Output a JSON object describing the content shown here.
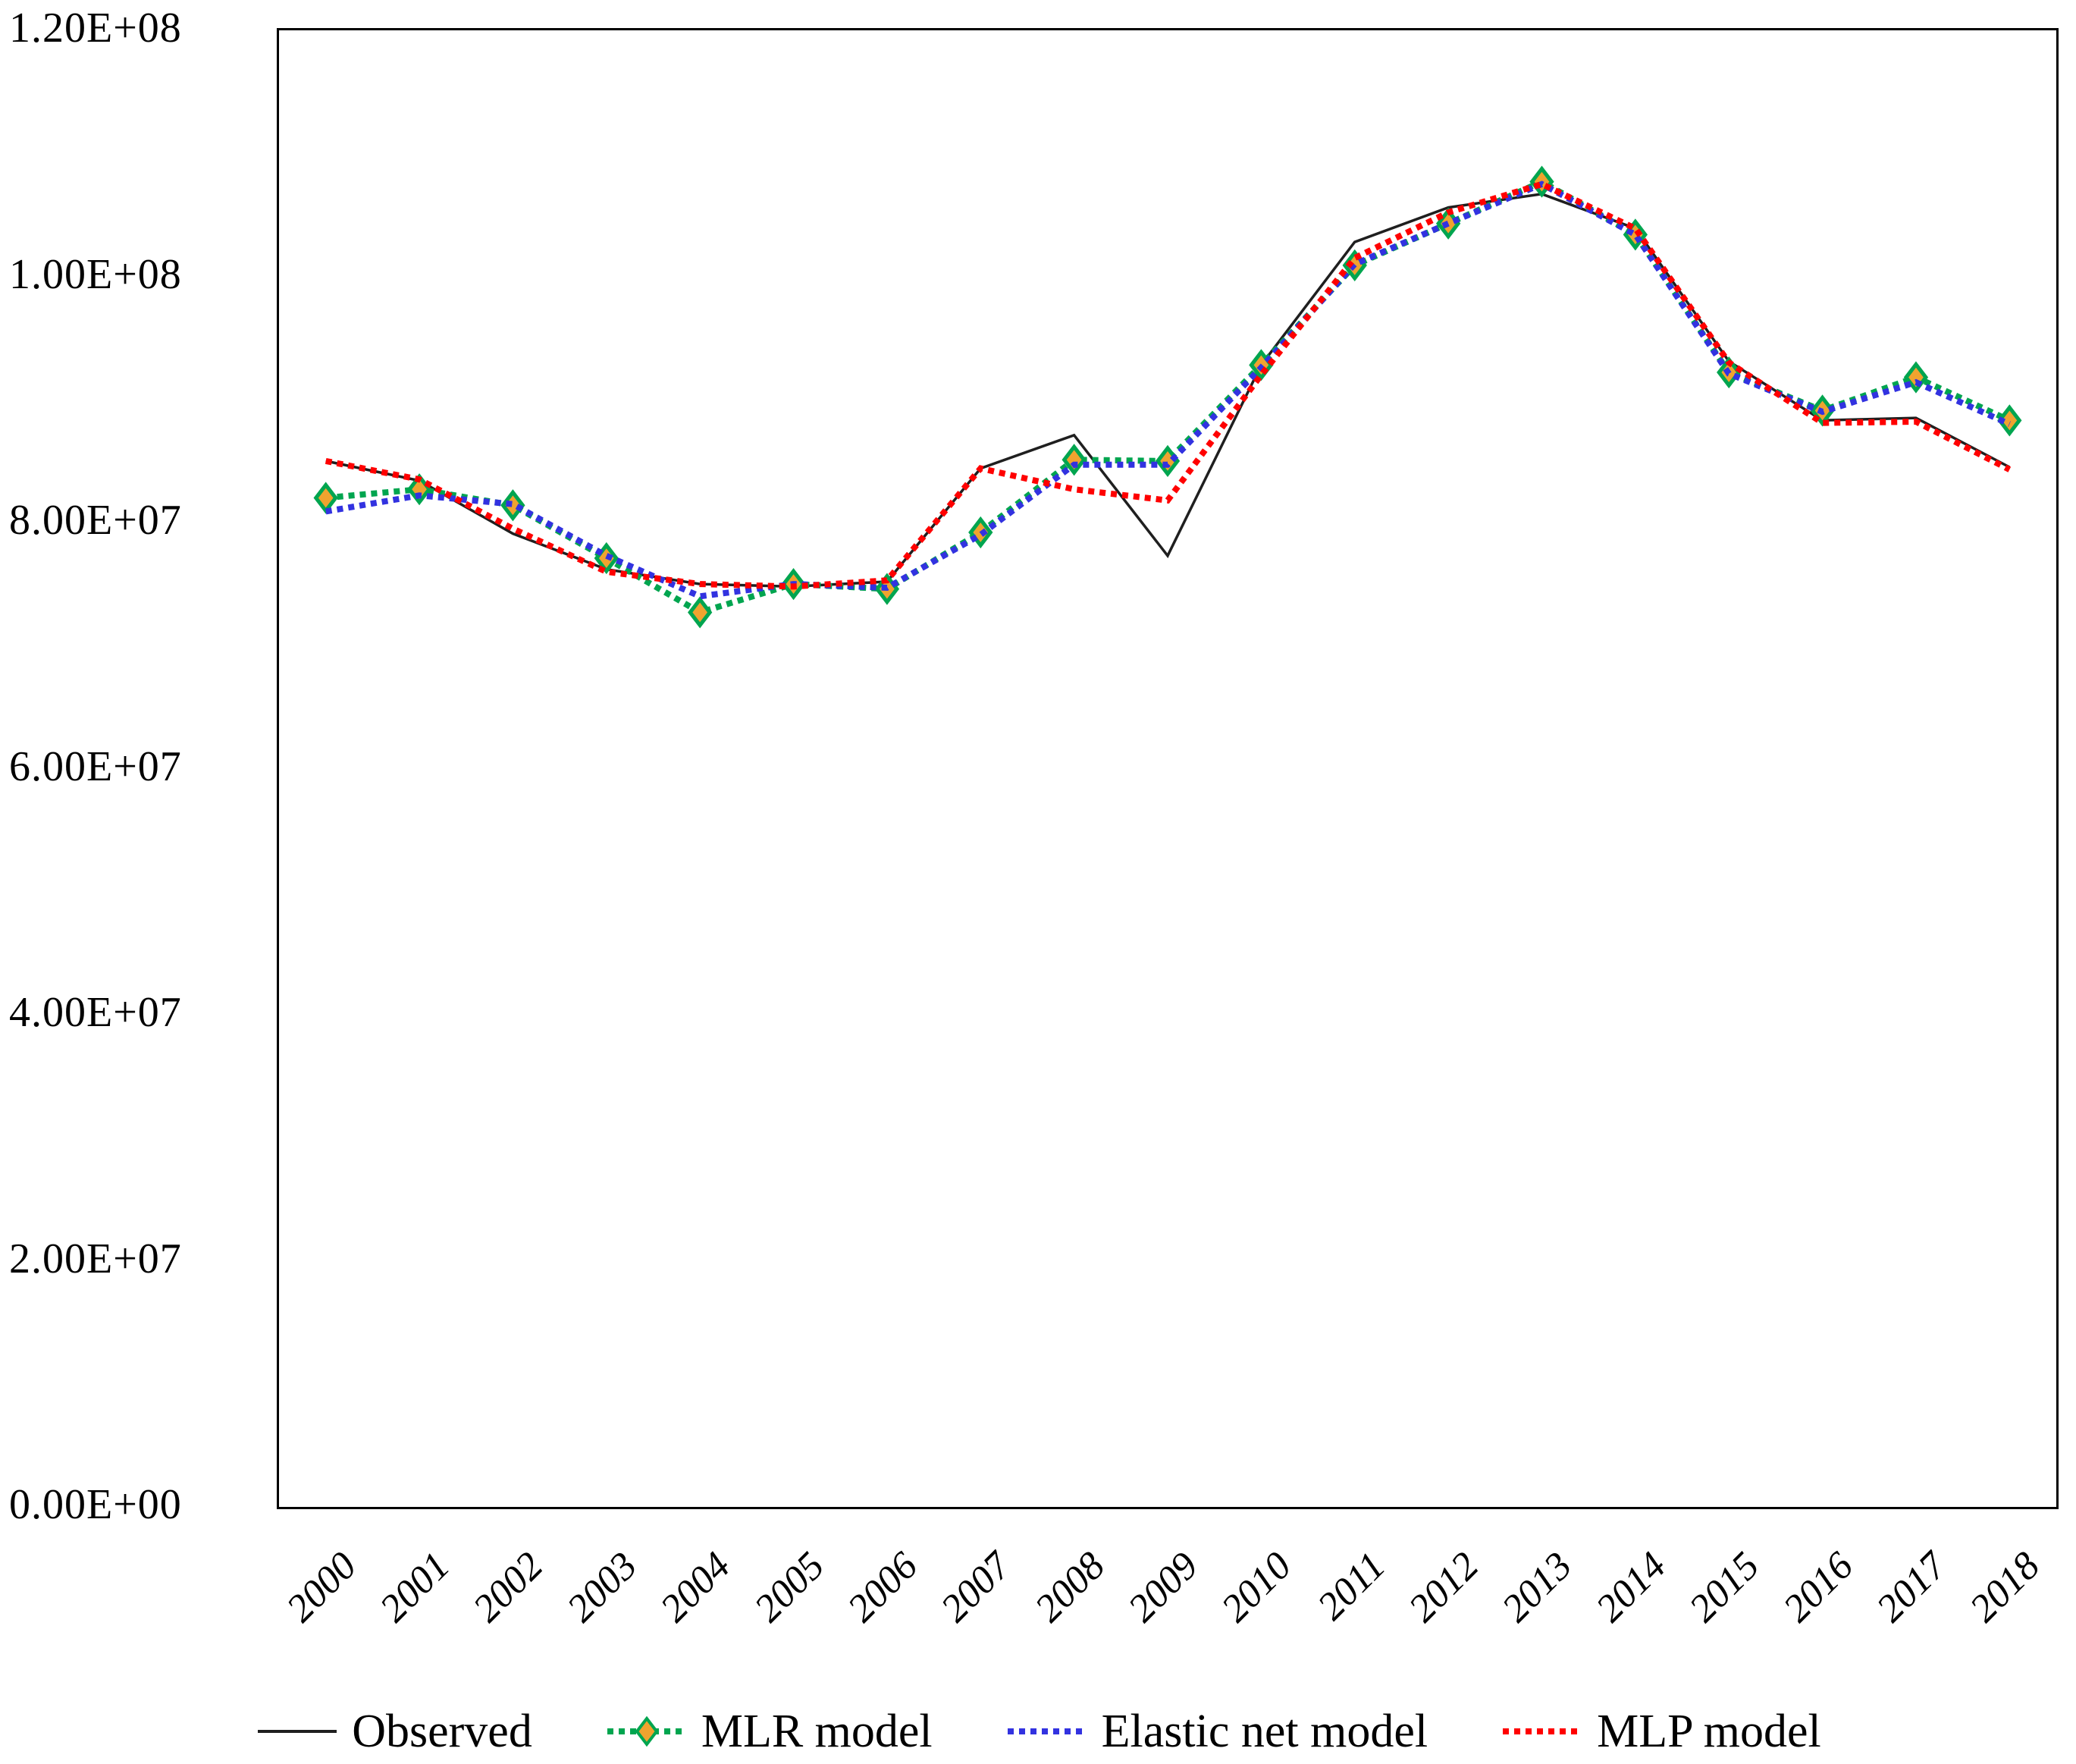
{
  "figure": {
    "background": "#ffffff",
    "frame_color": "#000000"
  },
  "y_axis": {
    "tick_labels": [
      "1.20E+08",
      "1.00E+08",
      "8.00E+07",
      "6.00E+07",
      "4.00E+07",
      "2.00E+07",
      "0.00E+00"
    ]
  },
  "x_axis": {
    "tick_labels": [
      "2000",
      "2001",
      "2002",
      "2003",
      "2004",
      "2005",
      "2006",
      "2007",
      "2008",
      "2009",
      "2010",
      "2011",
      "2012",
      "2013",
      "2014",
      "2015",
      "2016",
      "2017",
      "2018"
    ]
  },
  "legend": {
    "items": [
      {
        "label": "Observed",
        "series": "Observed"
      },
      {
        "label": "MLR model",
        "series": "MLR model"
      },
      {
        "label": "Elastic net model",
        "series": "Elastic net model"
      },
      {
        "label": "MLP model",
        "series": "MLP model"
      }
    ]
  },
  "chart_data": {
    "type": "line",
    "title": "",
    "xlabel": "",
    "ylabel": "",
    "ylim": [
      0,
      120000000
    ],
    "grid": false,
    "legend_position": "bottom",
    "categories": [
      "2000",
      "2001",
      "2002",
      "2003",
      "2004",
      "2005",
      "2006",
      "2007",
      "2008",
      "2009",
      "2010",
      "2011",
      "2012",
      "2013",
      "2014",
      "2015",
      "2016",
      "2017",
      "2018"
    ],
    "series": [
      {
        "name": "Observed",
        "color": "#1f1f1f",
        "line_style": "solid",
        "marker": "none",
        "values": [
          85000000,
          83400000,
          79100000,
          76200000,
          75000000,
          74800000,
          75200000,
          84400000,
          87100000,
          77300000,
          92800000,
          102800000,
          105600000,
          106700000,
          103900000,
          93100000,
          88300000,
          88500000,
          84500000
        ]
      },
      {
        "name": "MLR model",
        "color": "#00A54F",
        "line_style": "dotted",
        "marker": "diamond",
        "marker_fill": "#F0A32F",
        "marker_stroke": "#00A54F",
        "values": [
          82000000,
          82700000,
          81400000,
          77100000,
          72700000,
          75000000,
          74600000,
          79200000,
          85100000,
          85000000,
          92800000,
          100900000,
          104300000,
          107700000,
          103400000,
          92200000,
          89100000,
          91800000,
          88300000
        ]
      },
      {
        "name": "Elastic net model",
        "color": "#3232E0",
        "line_style": "dotted",
        "marker": "none",
        "values": [
          80900000,
          82200000,
          81500000,
          77300000,
          74000000,
          75000000,
          74700000,
          79000000,
          84700000,
          84700000,
          92600000,
          101000000,
          104300000,
          107500000,
          103400000,
          92100000,
          89000000,
          91400000,
          88000000
        ]
      },
      {
        "name": "MLP model",
        "color": "#FF0000",
        "line_style": "dotted",
        "marker": "none",
        "values": [
          85000000,
          83500000,
          79500000,
          76000000,
          75000000,
          74800000,
          75300000,
          84400000,
          82700000,
          81800000,
          92000000,
          101500000,
          105200000,
          107500000,
          103900000,
          93000000,
          88100000,
          88200000,
          84300000
        ]
      }
    ]
  }
}
